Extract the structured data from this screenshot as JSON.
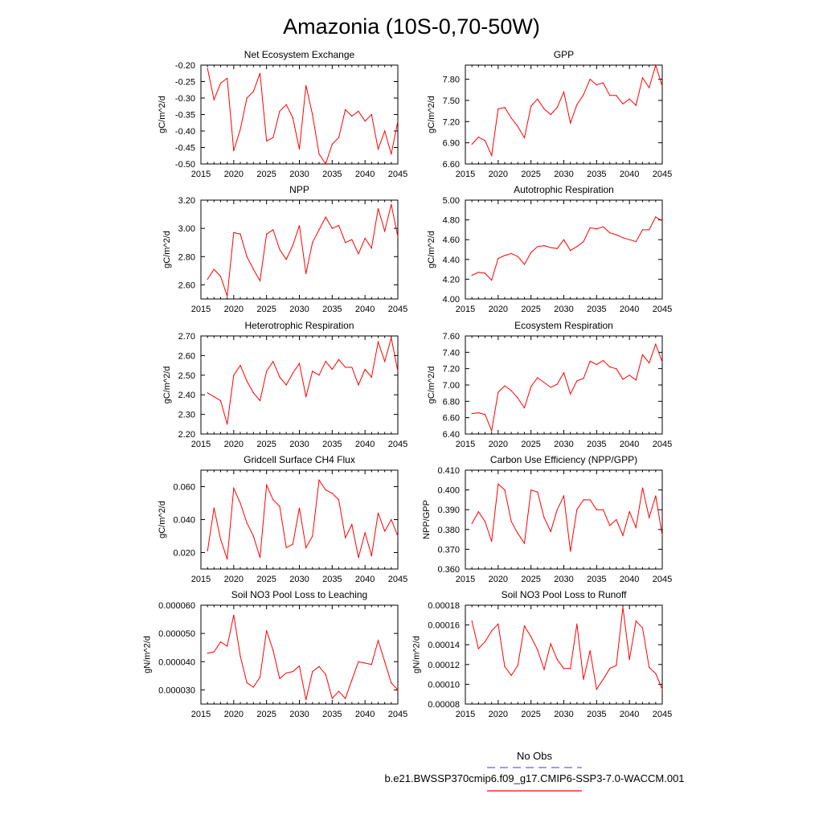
{
  "figure": {
    "title": "Amazonia (10S-0,70-50W)",
    "legend": {
      "obs_label": "No Obs",
      "obs_color": "#6666cc",
      "model_label": "b.e21.BWSSP370cmip6.f09_g17.CMIP6-SSP3-7.0-WACCM.001",
      "model_color": "#ff0000"
    }
  },
  "chart_data": [
    {
      "type": "line",
      "title": "Net Ecosystem Exchange",
      "ylabel": "gC/m^2/d",
      "xlim": [
        2015,
        2045
      ],
      "ylim": [
        -0.5,
        -0.2
      ],
      "xticks": [
        2015,
        2020,
        2025,
        2030,
        2035,
        2040,
        2045
      ],
      "yticks": [
        -0.5,
        -0.45,
        -0.4,
        -0.35,
        -0.3,
        -0.25,
        -0.2
      ],
      "ytick_labels": [
        "-0.50",
        "-0.45",
        "-0.40",
        "-0.35",
        "-0.30",
        "-0.25",
        "-0.20"
      ],
      "x": [
        2016,
        2017,
        2018,
        2019,
        2020,
        2021,
        2022,
        2023,
        2024,
        2025,
        2026,
        2027,
        2028,
        2029,
        2030,
        2031,
        2032,
        2033,
        2034,
        2035,
        2036,
        2037,
        2038,
        2039,
        2040,
        2041,
        2042,
        2043,
        2044,
        2045
      ],
      "series": [
        {
          "name": "model",
          "color": "#ff0000",
          "values": [
            -0.21,
            -0.305,
            -0.255,
            -0.24,
            -0.46,
            -0.395,
            -0.3,
            -0.28,
            -0.225,
            -0.43,
            -0.42,
            -0.34,
            -0.32,
            -0.36,
            -0.455,
            -0.262,
            -0.35,
            -0.47,
            -0.5,
            -0.44,
            -0.42,
            -0.335,
            -0.355,
            -0.34,
            -0.37,
            -0.35,
            -0.455,
            -0.4,
            -0.47,
            -0.37
          ]
        }
      ]
    },
    {
      "type": "line",
      "title": "GPP",
      "ylabel": "gC/m^2/d",
      "xlim": [
        2015,
        2045
      ],
      "ylim": [
        6.6,
        8.0
      ],
      "xticks": [
        2015,
        2020,
        2025,
        2030,
        2035,
        2040,
        2045
      ],
      "yticks": [
        6.6,
        6.9,
        7.2,
        7.5,
        7.8
      ],
      "ytick_labels": [
        "6.60",
        "6.90",
        "7.20",
        "7.50",
        "7.80"
      ],
      "x": [
        2016,
        2017,
        2018,
        2019,
        2020,
        2021,
        2022,
        2023,
        2024,
        2025,
        2026,
        2027,
        2028,
        2029,
        2030,
        2031,
        2032,
        2033,
        2034,
        2035,
        2036,
        2037,
        2038,
        2039,
        2040,
        2041,
        2042,
        2043,
        2044,
        2045
      ],
      "series": [
        {
          "name": "model",
          "color": "#ff0000",
          "values": [
            6.88,
            6.98,
            6.93,
            6.72,
            7.38,
            7.4,
            7.25,
            7.13,
            6.97,
            7.42,
            7.52,
            7.38,
            7.3,
            7.4,
            7.62,
            7.18,
            7.44,
            7.58,
            7.8,
            7.72,
            7.75,
            7.57,
            7.57,
            7.45,
            7.52,
            7.43,
            7.82,
            7.68,
            8.0,
            7.7
          ]
        }
      ]
    },
    {
      "type": "line",
      "title": "NPP",
      "ylabel": "gC/m^2/d",
      "xlim": [
        2015,
        2045
      ],
      "ylim": [
        2.5,
        3.2
      ],
      "xticks": [
        2015,
        2020,
        2025,
        2030,
        2035,
        2040,
        2045
      ],
      "yticks": [
        2.6,
        2.8,
        3.0,
        3.2
      ],
      "ytick_labels": [
        "2.60",
        "2.80",
        "3.00",
        "3.20"
      ],
      "x": [
        2016,
        2017,
        2018,
        2019,
        2020,
        2021,
        2022,
        2023,
        2024,
        2025,
        2026,
        2027,
        2028,
        2029,
        2030,
        2031,
        2032,
        2033,
        2034,
        2035,
        2036,
        2037,
        2038,
        2039,
        2040,
        2041,
        2042,
        2043,
        2044,
        2045
      ],
      "series": [
        {
          "name": "model",
          "color": "#ff0000",
          "values": [
            2.64,
            2.71,
            2.66,
            2.52,
            2.97,
            2.96,
            2.8,
            2.71,
            2.63,
            2.96,
            2.99,
            2.85,
            2.78,
            2.88,
            3.02,
            2.68,
            2.9,
            2.99,
            3.08,
            3.0,
            3.02,
            2.9,
            2.92,
            2.82,
            2.93,
            2.86,
            3.14,
            2.98,
            3.17,
            2.94
          ]
        }
      ]
    },
    {
      "type": "line",
      "title": "Autotrophic Respiration",
      "ylabel": "gC/m^2/d",
      "xlim": [
        2015,
        2045
      ],
      "ylim": [
        4.0,
        5.0
      ],
      "xticks": [
        2015,
        2020,
        2025,
        2030,
        2035,
        2040,
        2045
      ],
      "yticks": [
        4.0,
        4.2,
        4.4,
        4.6,
        4.8,
        5.0
      ],
      "ytick_labels": [
        "4.00",
        "4.20",
        "4.40",
        "4.60",
        "4.80",
        "5.00"
      ],
      "x": [
        2016,
        2017,
        2018,
        2019,
        2020,
        2021,
        2022,
        2023,
        2024,
        2025,
        2026,
        2027,
        2028,
        2029,
        2030,
        2031,
        2032,
        2033,
        2034,
        2035,
        2036,
        2037,
        2038,
        2039,
        2040,
        2041,
        2042,
        2043,
        2044,
        2045
      ],
      "series": [
        {
          "name": "model",
          "color": "#ff0000",
          "values": [
            4.24,
            4.27,
            4.26,
            4.19,
            4.41,
            4.44,
            4.46,
            4.43,
            4.35,
            4.47,
            4.53,
            4.54,
            4.52,
            4.51,
            4.6,
            4.49,
            4.53,
            4.58,
            4.72,
            4.71,
            4.73,
            4.67,
            4.65,
            4.62,
            4.6,
            4.58,
            4.7,
            4.7,
            4.83,
            4.79
          ]
        }
      ]
    },
    {
      "type": "line",
      "title": "Heterotrophic Respiration",
      "ylabel": "gC/m^2/d",
      "xlim": [
        2015,
        2045
      ],
      "ylim": [
        2.2,
        2.7
      ],
      "xticks": [
        2015,
        2020,
        2025,
        2030,
        2035,
        2040,
        2045
      ],
      "yticks": [
        2.2,
        2.3,
        2.4,
        2.5,
        2.6,
        2.7
      ],
      "ytick_labels": [
        "2.20",
        "2.30",
        "2.40",
        "2.50",
        "2.60",
        "2.70"
      ],
      "x": [
        2016,
        2017,
        2018,
        2019,
        2020,
        2021,
        2022,
        2023,
        2024,
        2025,
        2026,
        2027,
        2028,
        2029,
        2030,
        2031,
        2032,
        2033,
        2034,
        2035,
        2036,
        2037,
        2038,
        2039,
        2040,
        2041,
        2042,
        2043,
        2044,
        2045
      ],
      "series": [
        {
          "name": "model",
          "color": "#ff0000",
          "values": [
            2.41,
            2.39,
            2.37,
            2.25,
            2.5,
            2.55,
            2.47,
            2.41,
            2.37,
            2.52,
            2.57,
            2.49,
            2.45,
            2.51,
            2.56,
            2.39,
            2.52,
            2.5,
            2.57,
            2.53,
            2.58,
            2.54,
            2.54,
            2.45,
            2.53,
            2.49,
            2.67,
            2.57,
            2.69,
            2.52
          ]
        }
      ]
    },
    {
      "type": "line",
      "title": "Ecosystem Respiration",
      "ylabel": "gC/m^2/d",
      "xlim": [
        2015,
        2045
      ],
      "ylim": [
        6.4,
        7.6
      ],
      "xticks": [
        2015,
        2020,
        2025,
        2030,
        2035,
        2040,
        2045
      ],
      "yticks": [
        6.4,
        6.6,
        6.8,
        7.0,
        7.2,
        7.4,
        7.6
      ],
      "ytick_labels": [
        "6.40",
        "6.60",
        "6.80",
        "7.00",
        "7.20",
        "7.40",
        "7.60"
      ],
      "x": [
        2016,
        2017,
        2018,
        2019,
        2020,
        2021,
        2022,
        2023,
        2024,
        2025,
        2026,
        2027,
        2028,
        2029,
        2030,
        2031,
        2032,
        2033,
        2034,
        2035,
        2036,
        2037,
        2038,
        2039,
        2040,
        2041,
        2042,
        2043,
        2044,
        2045
      ],
      "series": [
        {
          "name": "model",
          "color": "#ff0000",
          "values": [
            6.65,
            6.66,
            6.64,
            6.44,
            6.91,
            6.99,
            6.93,
            6.84,
            6.72,
            6.98,
            7.09,
            7.03,
            6.97,
            7.01,
            7.15,
            6.89,
            7.05,
            7.08,
            7.29,
            7.25,
            7.3,
            7.22,
            7.2,
            7.07,
            7.12,
            7.06,
            7.37,
            7.27,
            7.5,
            7.28
          ]
        }
      ]
    },
    {
      "type": "line",
      "title": "Gridcell Surface CH4 Flux",
      "ylabel": "gC/m^2/d",
      "xlim": [
        2015,
        2045
      ],
      "ylim": [
        0.01,
        0.07
      ],
      "xticks": [
        2015,
        2020,
        2025,
        2030,
        2035,
        2040,
        2045
      ],
      "yticks": [
        0.02,
        0.04,
        0.06
      ],
      "ytick_labels": [
        "0.020",
        "0.040",
        "0.060"
      ],
      "x": [
        2016,
        2017,
        2018,
        2019,
        2020,
        2021,
        2022,
        2023,
        2024,
        2025,
        2026,
        2027,
        2028,
        2029,
        2030,
        2031,
        2032,
        2033,
        2034,
        2035,
        2036,
        2037,
        2038,
        2039,
        2040,
        2041,
        2042,
        2043,
        2044,
        2045
      ],
      "series": [
        {
          "name": "model",
          "color": "#ff0000",
          "values": [
            0.021,
            0.047,
            0.028,
            0.016,
            0.059,
            0.05,
            0.038,
            0.03,
            0.017,
            0.061,
            0.052,
            0.048,
            0.023,
            0.025,
            0.047,
            0.023,
            0.03,
            0.064,
            0.058,
            0.056,
            0.052,
            0.029,
            0.037,
            0.017,
            0.032,
            0.018,
            0.044,
            0.033,
            0.04,
            0.03
          ]
        }
      ]
    },
    {
      "type": "line",
      "title": "Carbon Use Efficiency (NPP/GPP)",
      "ylabel": "NPP/GPP",
      "xlim": [
        2015,
        2045
      ],
      "ylim": [
        0.36,
        0.41
      ],
      "xticks": [
        2015,
        2020,
        2025,
        2030,
        2035,
        2040,
        2045
      ],
      "yticks": [
        0.36,
        0.37,
        0.38,
        0.39,
        0.4,
        0.41
      ],
      "ytick_labels": [
        "0.360",
        "0.370",
        "0.380",
        "0.390",
        "0.400",
        "0.410"
      ],
      "x": [
        2016,
        2017,
        2018,
        2019,
        2020,
        2021,
        2022,
        2023,
        2024,
        2025,
        2026,
        2027,
        2028,
        2029,
        2030,
        2031,
        2032,
        2033,
        2034,
        2035,
        2036,
        2037,
        2038,
        2039,
        2040,
        2041,
        2042,
        2043,
        2044,
        2045
      ],
      "series": [
        {
          "name": "model",
          "color": "#ff0000",
          "values": [
            0.383,
            0.389,
            0.384,
            0.374,
            0.403,
            0.4,
            0.384,
            0.378,
            0.373,
            0.4,
            0.399,
            0.386,
            0.379,
            0.39,
            0.397,
            0.369,
            0.39,
            0.395,
            0.395,
            0.39,
            0.39,
            0.382,
            0.385,
            0.377,
            0.389,
            0.381,
            0.401,
            0.386,
            0.397,
            0.377
          ]
        }
      ]
    },
    {
      "type": "line",
      "title": "Soil NO3 Pool Loss to Leaching",
      "ylabel": "gN/m^2/d",
      "xlim": [
        2015,
        2045
      ],
      "ylim": [
        2.5e-05,
        6e-05
      ],
      "xticks": [
        2015,
        2020,
        2025,
        2030,
        2035,
        2040,
        2045
      ],
      "yticks": [
        3e-05,
        4e-05,
        5e-05,
        6e-05
      ],
      "ytick_labels": [
        "0.000030",
        "0.000040",
        "0.000050",
        "0.000060"
      ],
      "x": [
        2016,
        2017,
        2018,
        2019,
        2020,
        2021,
        2022,
        2023,
        2024,
        2025,
        2026,
        2027,
        2028,
        2029,
        2030,
        2031,
        2032,
        2033,
        2034,
        2035,
        2036,
        2037,
        2038,
        2039,
        2040,
        2041,
        2042,
        2043,
        2044,
        2045
      ],
      "series": [
        {
          "name": "model",
          "color": "#ff0000",
          "values": [
            4.3e-05,
            4.35e-05,
            4.7e-05,
            4.55e-05,
            5.65e-05,
            4.2e-05,
            3.25e-05,
            3.1e-05,
            3.45e-05,
            5.1e-05,
            4.4e-05,
            3.4e-05,
            3.6e-05,
            3.65e-05,
            3.85e-05,
            2.65e-05,
            3.65e-05,
            3.83e-05,
            3.55e-05,
            2.7e-05,
            2.95e-05,
            2.7e-05,
            3.35e-05,
            4e-05,
            3.95e-05,
            3.9e-05,
            4.75e-05,
            4e-05,
            3.25e-05,
            3e-05
          ]
        }
      ]
    },
    {
      "type": "line",
      "title": "Soil NO3 Pool Loss to Runoff",
      "ylabel": "gN/m^2/d",
      "xlim": [
        2015,
        2045
      ],
      "ylim": [
        8e-05,
        0.00018
      ],
      "xticks": [
        2015,
        2020,
        2025,
        2030,
        2035,
        2040,
        2045
      ],
      "yticks": [
        8e-05,
        0.0001,
        0.00012,
        0.00014,
        0.00016,
        0.00018
      ],
      "ytick_labels": [
        "0.00008",
        "0.00010",
        "0.00012",
        "0.00014",
        "0.00016",
        "0.00018"
      ],
      "x": [
        2016,
        2017,
        2018,
        2019,
        2020,
        2021,
        2022,
        2023,
        2024,
        2025,
        2026,
        2027,
        2028,
        2029,
        2030,
        2031,
        2032,
        2033,
        2034,
        2035,
        2036,
        2037,
        2038,
        2039,
        2040,
        2041,
        2042,
        2043,
        2044,
        2045
      ],
      "series": [
        {
          "name": "model",
          "color": "#ff0000",
          "values": [
            0.000164,
            0.000136,
            0.000143,
            0.000154,
            0.000161,
            0.000118,
            0.000109,
            0.000119,
            0.000159,
            0.000148,
            0.000135,
            0.000115,
            0.000141,
            0.000125,
            0.000116,
            0.000116,
            0.000161,
            0.000105,
            0.000134,
            9.5e-05,
            0.000105,
            0.000116,
            0.000119,
            0.000178,
            0.000125,
            0.000164,
            0.000157,
            0.000117,
            0.000111,
            9.5e-05
          ]
        }
      ]
    }
  ]
}
